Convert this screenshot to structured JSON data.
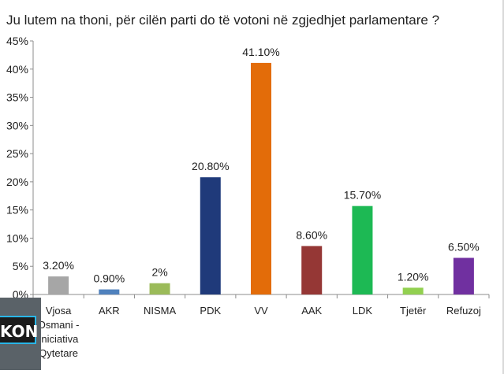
{
  "chart_data": {
    "type": "bar",
    "title": "Ju lutem na thoni, për cilën parti do të votoni në zgjedhjet parlamentare ?",
    "categories": [
      [
        "Vjosa",
        "Osmani -",
        "Iniciativa",
        "Qytetare"
      ],
      [
        "AKR"
      ],
      [
        "NISMA"
      ],
      [
        "PDK"
      ],
      [
        "VV"
      ],
      [
        "AAK"
      ],
      [
        "LDK"
      ],
      [
        "Tjetër"
      ],
      [
        "Refuzoj"
      ]
    ],
    "values": [
      3.2,
      0.9,
      2,
      20.8,
      41.1,
      8.6,
      15.7,
      1.2,
      6.5
    ],
    "data_labels": [
      "3.20%",
      "0.90%",
      "2%",
      "20.80%",
      "41.10%",
      "8.60%",
      "15.70%",
      "1.20%",
      "6.50%"
    ],
    "colors": [
      "#a6a6a6",
      "#4f81bd",
      "#9bbb59",
      "#1f3a7a",
      "#e36c09",
      "#953735",
      "#1db954",
      "#92d050",
      "#7030a0"
    ],
    "ylim": [
      0,
      45
    ],
    "yticks": [
      "0%",
      "5%",
      "10%",
      "15%",
      "20%",
      "25%",
      "30%",
      "35%",
      "40%",
      "45%"
    ],
    "ytick_values": [
      0,
      5,
      10,
      15,
      20,
      25,
      30,
      35,
      40,
      45
    ],
    "grid": false,
    "legend": "none"
  },
  "logo": {
    "text": "KON"
  }
}
